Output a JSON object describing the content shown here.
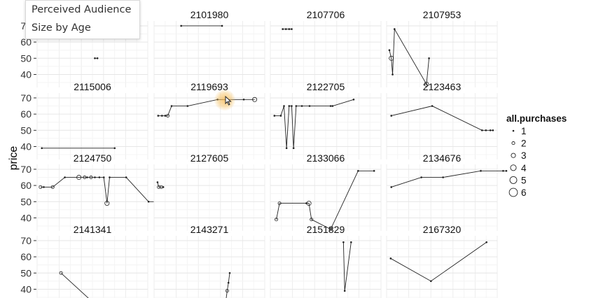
{
  "tooltip": {
    "line1": "Perceived Audience",
    "line2": "Size by Age"
  },
  "chart_data": {
    "type": "scatter",
    "ylabel": "price",
    "xlabel": "",
    "ylim": [
      32,
      73
    ],
    "xlim": [
      0,
      16
    ],
    "y_ticks": [
      40,
      50,
      60,
      70
    ],
    "grid": true,
    "legend": {
      "title": "all.purchases",
      "position": "right",
      "entries": [
        "1",
        "2",
        "3",
        "4",
        "5",
        "6"
      ]
    },
    "facets": [
      {
        "id": "",
        "points": [
          [
            8.6,
            50,
            1
          ],
          [
            9.0,
            50,
            1
          ]
        ]
      },
      {
        "id": "2101980",
        "points": [
          [
            3.8,
            70,
            1
          ],
          [
            10.2,
            70,
            1
          ]
        ]
      },
      {
        "id": "2107706",
        "points": [
          [
            1.5,
            68,
            1
          ],
          [
            2.0,
            68,
            1
          ],
          [
            2.5,
            68,
            1
          ],
          [
            2.9,
            68,
            1
          ]
        ]
      },
      {
        "id": "2107953",
        "points": [
          [
            0.0,
            55,
            1
          ],
          [
            0.3,
            50,
            3
          ],
          [
            0.5,
            40,
            1
          ],
          [
            0.8,
            68,
            1
          ],
          [
            5.8,
            34,
            3
          ],
          [
            6.2,
            50,
            1
          ]
        ]
      },
      {
        "id": "2115006",
        "points": [
          [
            0.3,
            39,
            1
          ],
          [
            11.7,
            39,
            1
          ]
        ]
      },
      {
        "id": "2119693",
        "points": [
          [
            0.2,
            59,
            1
          ],
          [
            0.8,
            59,
            1
          ],
          [
            1.3,
            59,
            1
          ],
          [
            1.7,
            59,
            2
          ],
          [
            2.3,
            65,
            1
          ],
          [
            4.8,
            65,
            1
          ],
          [
            9.5,
            69,
            1
          ],
          [
            13.6,
            69,
            1
          ],
          [
            15.3,
            69,
            3
          ]
        ]
      },
      {
        "id": "2122705",
        "points": [
          [
            0.2,
            59,
            1
          ],
          [
            1.2,
            59,
            1
          ],
          [
            1.7,
            65,
            1
          ],
          [
            2.1,
            39,
            1
          ],
          [
            2.5,
            65,
            1
          ],
          [
            2.9,
            65,
            1
          ],
          [
            3.2,
            39,
            1
          ],
          [
            3.6,
            65,
            1
          ],
          [
            4.5,
            65,
            1
          ],
          [
            5.7,
            65,
            1
          ],
          [
            9.0,
            65,
            1
          ],
          [
            9.3,
            65,
            1
          ],
          [
            12.6,
            69,
            1
          ]
        ]
      },
      {
        "id": "2123463",
        "points": [
          [
            0.3,
            59,
            1
          ],
          [
            6.7,
            65,
            1
          ],
          [
            14.5,
            50,
            1
          ],
          [
            15.1,
            50,
            1
          ],
          [
            15.8,
            50,
            1
          ],
          [
            16.2,
            50,
            1
          ]
        ]
      },
      {
        "id": "2124750",
        "points": [
          [
            0.1,
            59,
            2
          ],
          [
            0.6,
            59,
            1
          ],
          [
            2.0,
            59,
            2
          ],
          [
            3.9,
            65,
            1
          ],
          [
            6.1,
            65,
            3
          ],
          [
            7.0,
            65,
            2
          ],
          [
            7.4,
            65,
            1
          ],
          [
            8.0,
            65,
            2
          ],
          [
            8.6,
            65,
            1
          ],
          [
            9.3,
            65,
            1
          ],
          [
            10.0,
            65,
            1
          ],
          [
            10.5,
            49,
            3
          ],
          [
            10.9,
            65,
            1
          ],
          [
            13.5,
            65,
            1
          ],
          [
            17.0,
            50,
            1
          ],
          [
            18.3,
            50,
            2
          ]
        ]
      },
      {
        "id": "2127605",
        "points": [
          [
            0.1,
            62,
            1
          ],
          [
            0.3,
            59,
            2
          ],
          [
            0.7,
            59,
            2
          ],
          [
            1.0,
            59,
            1
          ]
        ]
      },
      {
        "id": "2133066",
        "points": [
          [
            0.5,
            39,
            2
          ],
          [
            1.0,
            49,
            2
          ],
          [
            5.2,
            49,
            1
          ],
          [
            5.6,
            49,
            3
          ],
          [
            6.0,
            39,
            2
          ],
          [
            9.0,
            33,
            2
          ],
          [
            13.3,
            69,
            1
          ],
          [
            15.8,
            69,
            1
          ]
        ]
      },
      {
        "id": "2134676",
        "points": [
          [
            0.3,
            59,
            1
          ],
          [
            5.0,
            65,
            1
          ],
          [
            8.4,
            65,
            1
          ],
          [
            14.3,
            69,
            1
          ],
          [
            17.8,
            69,
            1
          ],
          [
            18.3,
            69,
            1
          ]
        ]
      },
      {
        "id": "2141341",
        "points": [
          [
            3.3,
            50,
            2
          ],
          [
            8.0,
            33,
            1
          ]
        ]
      },
      {
        "id": "2143271",
        "points": [
          [
            10.8,
            33,
            1
          ],
          [
            11.0,
            39,
            2
          ],
          [
            11.2,
            44,
            1
          ],
          [
            11.4,
            50,
            1
          ]
        ]
      },
      {
        "id": "2151829",
        "points": [
          [
            11.0,
            69,
            1
          ],
          [
            11.2,
            39,
            1
          ],
          [
            12.2,
            69,
            1
          ]
        ]
      },
      {
        "id": "2167320",
        "points": [
          [
            0.2,
            59,
            1
          ],
          [
            6.5,
            45,
            1
          ],
          [
            15.2,
            69,
            1
          ]
        ]
      }
    ]
  }
}
